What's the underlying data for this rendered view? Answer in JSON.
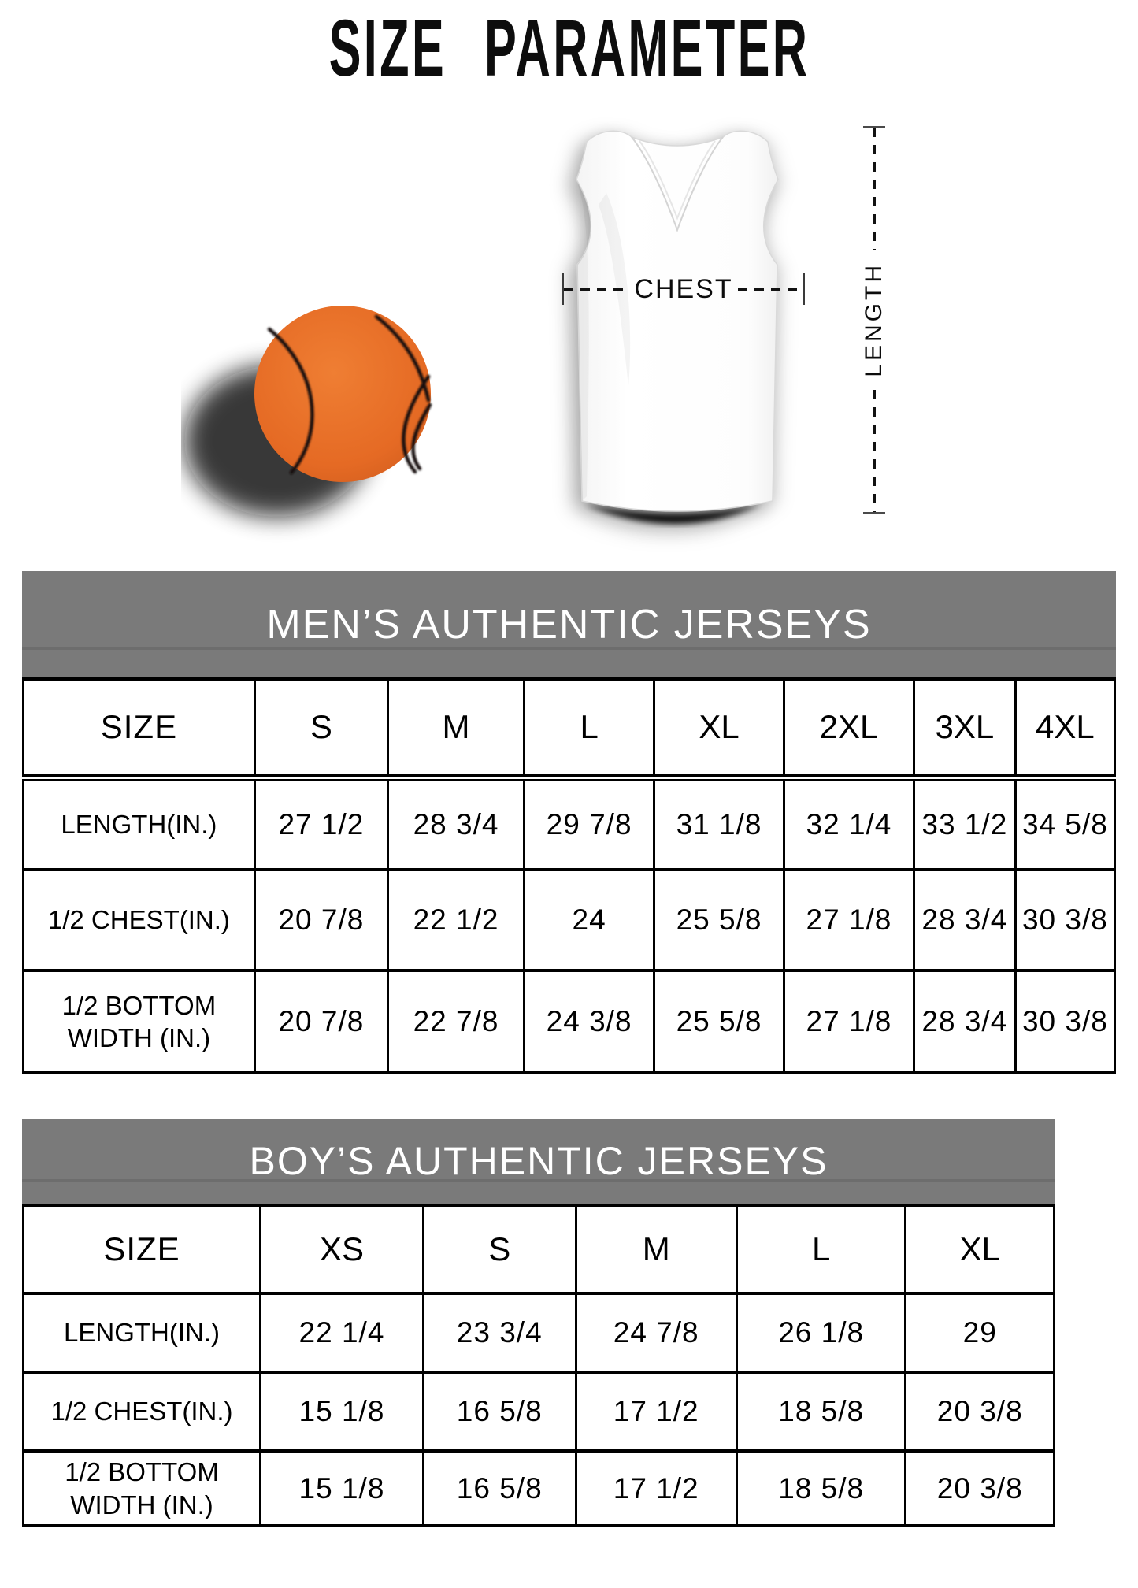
{
  "title": "SIZE PARAMETER",
  "diagram": {
    "chest_label": "CHEST",
    "length_label": "LENGTH",
    "basketball_color": "#e7username6f28",
    "jersey_color": "#ffffff"
  },
  "tables": {
    "mens": {
      "header": "MEN’S AUTHENTIC JERSEYS",
      "size_label": "SIZE",
      "sizes": [
        "S",
        "M",
        "L",
        "XL",
        "2XL",
        "3XL",
        "4XL"
      ],
      "rows": [
        {
          "label": "LENGTH(IN.)",
          "values": [
            "27 1/2",
            "28 3/4",
            "29 7/8",
            "31 1/8",
            "32 1/4",
            "33 1/2",
            "34 5/8"
          ]
        },
        {
          "label": "1/2 CHEST(IN.)",
          "values": [
            "20 7/8",
            "22 1/2",
            "24",
            "25 5/8",
            "27 1/8",
            "28 3/4",
            "30 3/8"
          ]
        },
        {
          "label": "1/2 BOTTOM WIDTH (IN.)",
          "values": [
            "20 7/8",
            "22 7/8",
            "24 3/8",
            "25 5/8",
            "27 1/8",
            "28 3/4",
            "30 3/8"
          ]
        }
      ]
    },
    "boys": {
      "header": "BOY’S AUTHENTIC JERSEYS",
      "size_label": "SIZE",
      "sizes": [
        "XS",
        "S",
        "M",
        "L",
        "XL"
      ],
      "rows": [
        {
          "label": "LENGTH(IN.)",
          "values": [
            "22 1/4",
            "23 3/4",
            "24 7/8",
            "26 1/8",
            "29"
          ]
        },
        {
          "label": "1/2 CHEST(IN.)",
          "values": [
            "15 1/8",
            "16 5/8",
            "17 1/2",
            "18 5/8",
            "20 3/8"
          ]
        },
        {
          "label": "1/2 BOTTOM WIDTH (IN.)",
          "values": [
            "15 1/8",
            "16 5/8",
            "17 1/2",
            "18 5/8",
            "20 3/8"
          ]
        }
      ]
    }
  }
}
